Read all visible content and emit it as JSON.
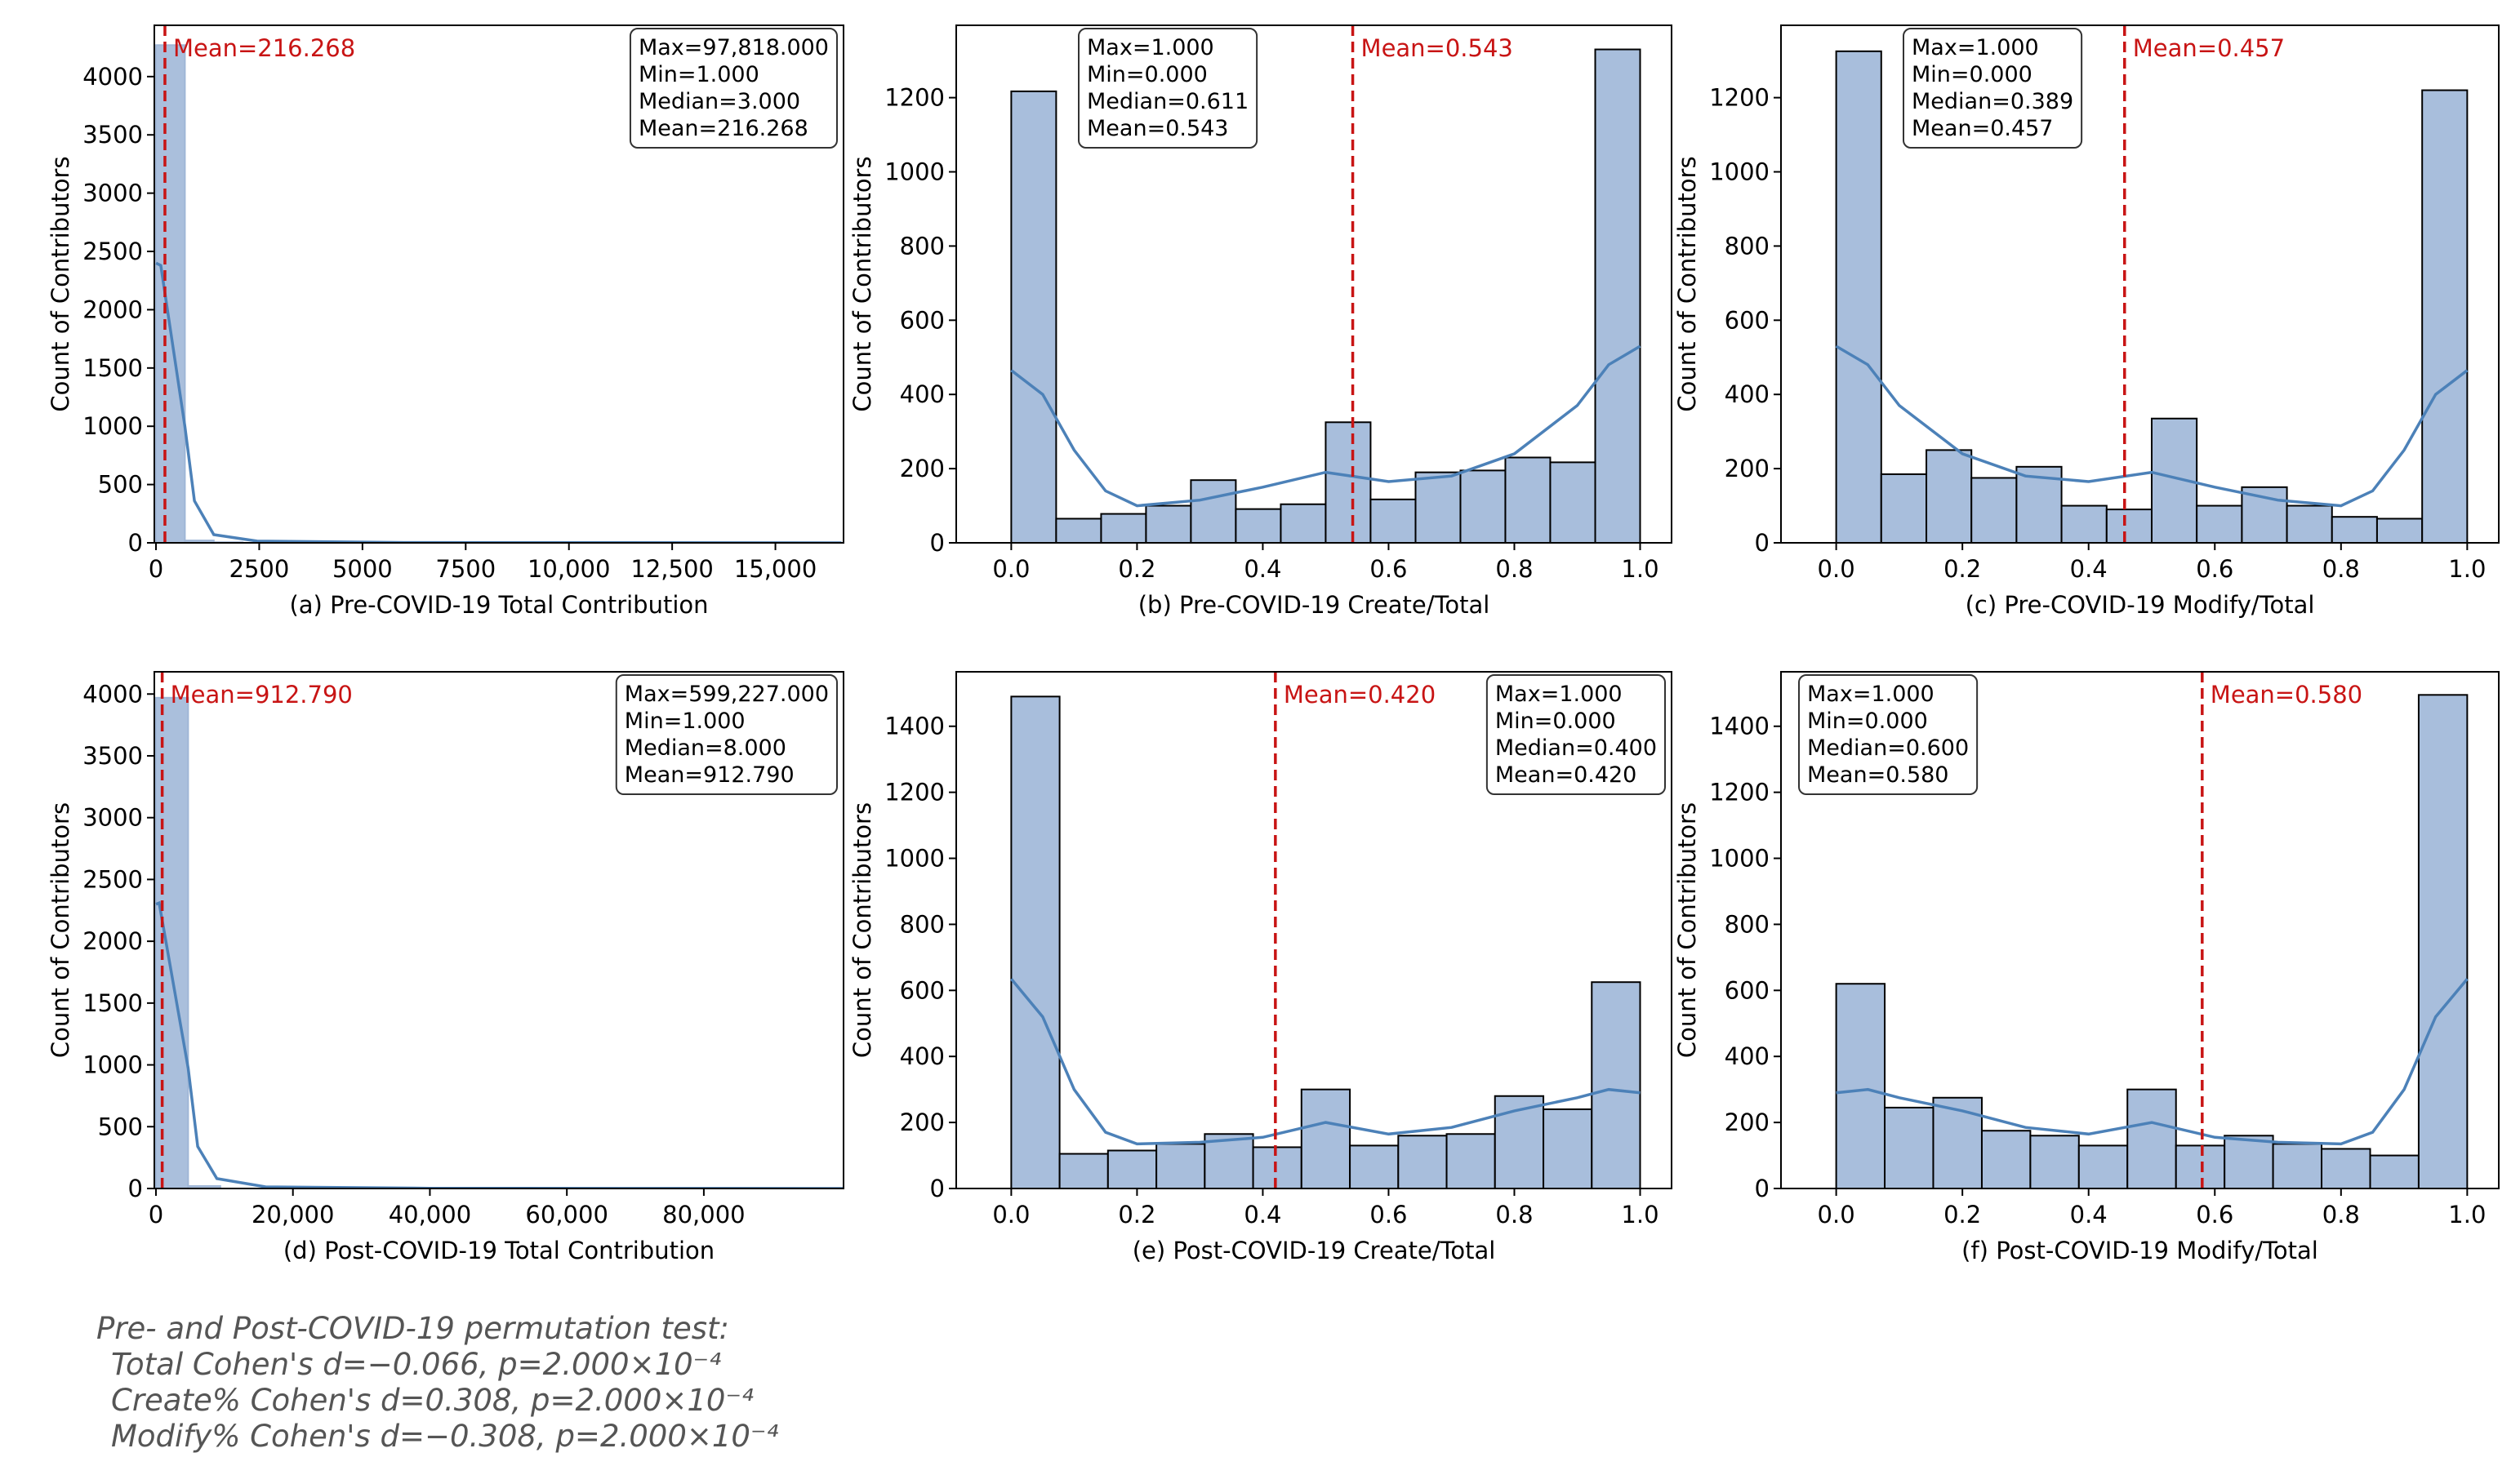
{
  "chart_data": [
    {
      "type": "histogram",
      "xlabel": "(a) Pre-COVID-19 Total Contribution",
      "ylabel": "Count of Contributors",
      "bins": [
        1,
        700,
        1400,
        2100
      ],
      "counts": [
        4270,
        20,
        5
      ],
      "color": "#aabfdc",
      "edgecolor": "#9fb6d6",
      "kde_x": [
        1,
        117,
        700,
        930,
        1400,
        2450,
        6000,
        16600
      ],
      "kde_y": [
        2400,
        2380,
        1000,
        360,
        70,
        15,
        3,
        0
      ],
      "kde_color": "#4c81b8",
      "mean": 216.268,
      "mean_label": "Mean=216.268",
      "mean_color": "#c81414",
      "stats": [
        "Max=97,818.000",
        "Min=1.000",
        "Median=3.000",
        "Mean=216.268"
      ],
      "stats_corner": "upper right",
      "xlim": [
        -40,
        16650
      ],
      "ylim": [
        0,
        4440
      ],
      "xticks": [
        0,
        2500,
        5000,
        7500,
        {
          "value": 10000,
          "label": "10,000"
        },
        {
          "value": 12500,
          "label": "12,500"
        },
        {
          "value": 15000,
          "label": "15,000"
        }
      ],
      "yticks": [
        0,
        500,
        1000,
        1500,
        2000,
        2500,
        3000,
        3500,
        4000
      ]
    },
    {
      "type": "histogram",
      "xlabel": "(b) Pre-COVID-19 Create/Total",
      "ylabel": "Count of Contributors",
      "bins": [
        0,
        0.0714,
        0.1429,
        0.2143,
        0.2857,
        0.3571,
        0.4286,
        0.5,
        0.5714,
        0.6429,
        0.7143,
        0.7857,
        0.8571,
        0.9286,
        1
      ],
      "counts": [
        1217,
        65,
        78,
        100,
        169,
        91,
        104,
        325,
        117,
        190,
        195,
        230,
        217,
        1330
      ],
      "color": "#a8bedc",
      "edgecolor": "#000000",
      "kde_x": [
        0,
        0.05,
        0.1,
        0.15,
        0.2,
        0.3,
        0.4,
        0.5,
        0.6,
        0.7,
        0.8,
        0.9,
        0.95,
        1
      ],
      "kde_y": [
        465,
        400,
        250,
        140,
        100,
        115,
        150,
        190,
        165,
        180,
        240,
        370,
        480,
        530
      ],
      "kde_color": "#4c81b8",
      "mean": 0.543,
      "mean_label": "Mean=0.543",
      "mean_color": "#c81414",
      "stats": [
        "Max=1.000",
        "Min=0.000",
        "Median=0.611",
        "Mean=0.543"
      ],
      "stats_corner": "upper left",
      "xlim": [
        -0.0875,
        1.05
      ],
      "ylim": [
        0,
        1395
      ],
      "xticks": [
        {
          "value": 0,
          "label": "0.0"
        },
        0.2,
        0.4,
        0.6,
        0.8,
        {
          "value": 1,
          "label": "1.0"
        }
      ],
      "yticks": [
        0,
        200,
        400,
        600,
        800,
        1000,
        1200
      ]
    },
    {
      "type": "histogram",
      "xlabel": "(c) Pre-COVID-19 Modify/Total",
      "ylabel": "Count of Contributors",
      "bins": [
        0,
        0.0714,
        0.1429,
        0.2143,
        0.2857,
        0.3571,
        0.4286,
        0.5,
        0.5714,
        0.6429,
        0.7143,
        0.7857,
        0.8571,
        0.9286,
        1
      ],
      "counts": [
        1325,
        185,
        250,
        175,
        205,
        100,
        90,
        335,
        100,
        150,
        100,
        70,
        65,
        1220
      ],
      "color": "#a8bedc",
      "edgecolor": "#000000",
      "kde_x": [
        0,
        0.05,
        0.1,
        0.2,
        0.3,
        0.4,
        0.5,
        0.6,
        0.7,
        0.8,
        0.85,
        0.9,
        0.95,
        1
      ],
      "kde_y": [
        530,
        480,
        370,
        240,
        180,
        165,
        190,
        150,
        115,
        100,
        140,
        250,
        400,
        465
      ],
      "kde_color": "#4c81b8",
      "mean": 0.457,
      "mean_label": "Mean=0.457",
      "mean_color": "#c81414",
      "stats": [
        "Max=1.000",
        "Min=0.000",
        "Median=0.389",
        "Mean=0.457"
      ],
      "stats_corner": "upper left",
      "xlim": [
        -0.0875,
        1.05
      ],
      "ylim": [
        0,
        1395
      ],
      "xticks": [
        {
          "value": 0,
          "label": "0.0"
        },
        0.2,
        0.4,
        0.6,
        0.8,
        {
          "value": 1,
          "label": "1.0"
        }
      ],
      "yticks": [
        0,
        200,
        400,
        600,
        800,
        1000,
        1200
      ]
    },
    {
      "type": "histogram",
      "xlabel": "(d) Post-COVID-19 Total Contribution",
      "ylabel": "Count of Contributors",
      "bins": [
        1,
        4700,
        9400
      ],
      "counts": [
        3970,
        20
      ],
      "color": "#aabfdc",
      "edgecolor": "#9fb6d6",
      "kde_x": [
        1,
        470,
        4700,
        6100,
        8900,
        16000,
        40000,
        100400
      ],
      "kde_y": [
        2300,
        2310,
        975,
        340,
        80,
        13,
        2,
        0
      ],
      "kde_color": "#4c81b8",
      "mean": 912.79,
      "mean_label": "Mean=912.790",
      "mean_color": "#c81414",
      "stats": [
        "Max=599,227.000",
        "Min=1.000",
        "Median=8.000",
        "Mean=912.790"
      ],
      "stats_corner": "upper right",
      "xlim": [
        -235,
        100400
      ],
      "ylim": [
        0,
        4180
      ],
      "xticks": [
        0,
        {
          "value": 20000,
          "label": "20,000"
        },
        {
          "value": 40000,
          "label": "40,000"
        },
        {
          "value": 60000,
          "label": "60,000"
        },
        {
          "value": 80000,
          "label": "80,000"
        }
      ],
      "yticks": [
        0,
        500,
        1000,
        1500,
        2000,
        2500,
        3000,
        3500,
        4000
      ]
    },
    {
      "type": "histogram",
      "xlabel": "(e) Post-COVID-19 Create/Total",
      "ylabel": "Count of Contributors",
      "bins": [
        0,
        0.0769,
        0.1538,
        0.2308,
        0.3077,
        0.3846,
        0.4615,
        0.5385,
        0.6154,
        0.6923,
        0.7692,
        0.8462,
        0.9231,
        1
      ],
      "counts": [
        1490,
        105,
        115,
        135,
        165,
        125,
        300,
        130,
        160,
        165,
        280,
        240,
        625
      ],
      "color": "#a8bedc",
      "edgecolor": "#000000",
      "kde_x": [
        0,
        0.05,
        0.1,
        0.15,
        0.2,
        0.3,
        0.4,
        0.5,
        0.6,
        0.7,
        0.8,
        0.9,
        0.95,
        1
      ],
      "kde_y": [
        635,
        520,
        300,
        170,
        135,
        140,
        155,
        200,
        165,
        185,
        235,
        275,
        300,
        290
      ],
      "kde_color": "#4c81b8",
      "mean": 0.42,
      "mean_label": "Mean=0.420",
      "mean_color": "#c81414",
      "stats": [
        "Max=1.000",
        "Min=0.000",
        "Median=0.400",
        "Mean=0.420"
      ],
      "stats_corner": "upper right",
      "xlim": [
        -0.0875,
        1.05
      ],
      "ylim": [
        0,
        1565
      ],
      "xticks": [
        {
          "value": 0,
          "label": "0.0"
        },
        0.2,
        0.4,
        0.6,
        0.8,
        {
          "value": 1,
          "label": "1.0"
        }
      ],
      "yticks": [
        0,
        200,
        400,
        600,
        800,
        1000,
        1200,
        1400
      ]
    },
    {
      "type": "histogram",
      "xlabel": "(f) Post-COVID-19 Modify/Total",
      "ylabel": "Count of Contributors",
      "bins": [
        0,
        0.0769,
        0.1538,
        0.2308,
        0.3077,
        0.3846,
        0.4615,
        0.5385,
        0.6154,
        0.6923,
        0.7692,
        0.8462,
        0.9231,
        1
      ],
      "counts": [
        620,
        245,
        275,
        175,
        160,
        130,
        300,
        130,
        160,
        135,
        120,
        100,
        1495
      ],
      "color": "#a8bedc",
      "edgecolor": "#000000",
      "kde_x": [
        0,
        0.05,
        0.1,
        0.2,
        0.3,
        0.4,
        0.5,
        0.6,
        0.7,
        0.8,
        0.85,
        0.9,
        0.95,
        1
      ],
      "kde_y": [
        290,
        300,
        275,
        235,
        185,
        165,
        200,
        155,
        140,
        135,
        170,
        300,
        520,
        635
      ],
      "kde_color": "#4c81b8",
      "mean": 0.58,
      "mean_label": "Mean=0.580",
      "mean_color": "#c81414",
      "stats": [
        "Max=1.000",
        "Min=0.000",
        "Median=0.600",
        "Mean=0.580"
      ],
      "stats_corner": "upper left",
      "xlim": [
        -0.0875,
        1.05
      ],
      "ylim": [
        0,
        1565
      ],
      "xticks": [
        {
          "value": 0,
          "label": "0.0"
        },
        0.2,
        0.4,
        0.6,
        0.8,
        {
          "value": 1,
          "label": "1.0"
        }
      ],
      "yticks": [
        0,
        200,
        400,
        600,
        800,
        1000,
        1200,
        1400
      ]
    }
  ],
  "note": [
    "Pre- and Post-COVID-19 permutation test:",
    "Total Cohen's d=−0.066, p=2.000×10⁻⁴",
    "Create% Cohen's d=0.308, p=2.000×10⁻⁴",
    "Modify% Cohen's d=−0.308, p=2.000×10⁻⁴"
  ]
}
